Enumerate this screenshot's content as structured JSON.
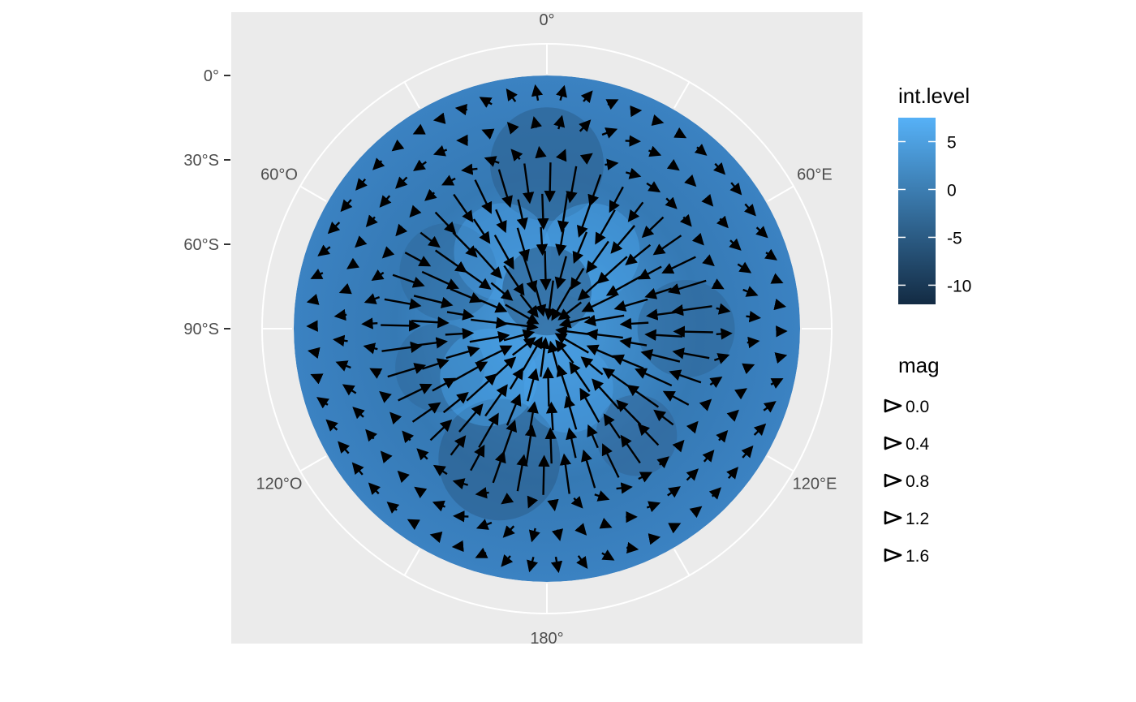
{
  "chart_data": {
    "type": "heatmap",
    "projection": "polar (south-pole stereographic)",
    "overlay": "vector arrows (wind/flow field)",
    "y_axis_ticks": [
      "0°",
      "30°S",
      "60°S",
      "90°S"
    ],
    "longitude_labels": [
      "0°",
      "60°E",
      "120°E",
      "180°",
      "120°O",
      "60°O"
    ],
    "grid": true,
    "fill_legend": {
      "title": "int.level",
      "breaks": [
        5,
        0,
        -5,
        -10
      ],
      "labels": [
        "5",
        "0",
        "-5",
        "-10"
      ],
      "range": [
        -12,
        7.5
      ],
      "low_color": "#132B43",
      "high_color": "#56B1F7"
    },
    "mag_legend": {
      "title": "mag",
      "labels": [
        "0.0",
        "0.4",
        "0.8",
        "1.2",
        "1.6"
      ],
      "values": [
        0.0,
        0.4,
        0.8,
        1.2,
        1.6
      ]
    },
    "field": {
      "description": "blue filled contour of int.level over the southern hemisphere with arrows converging toward/diverging from the pole",
      "panel_background": "#ebebeb",
      "grid_color": "#ffffff"
    }
  }
}
